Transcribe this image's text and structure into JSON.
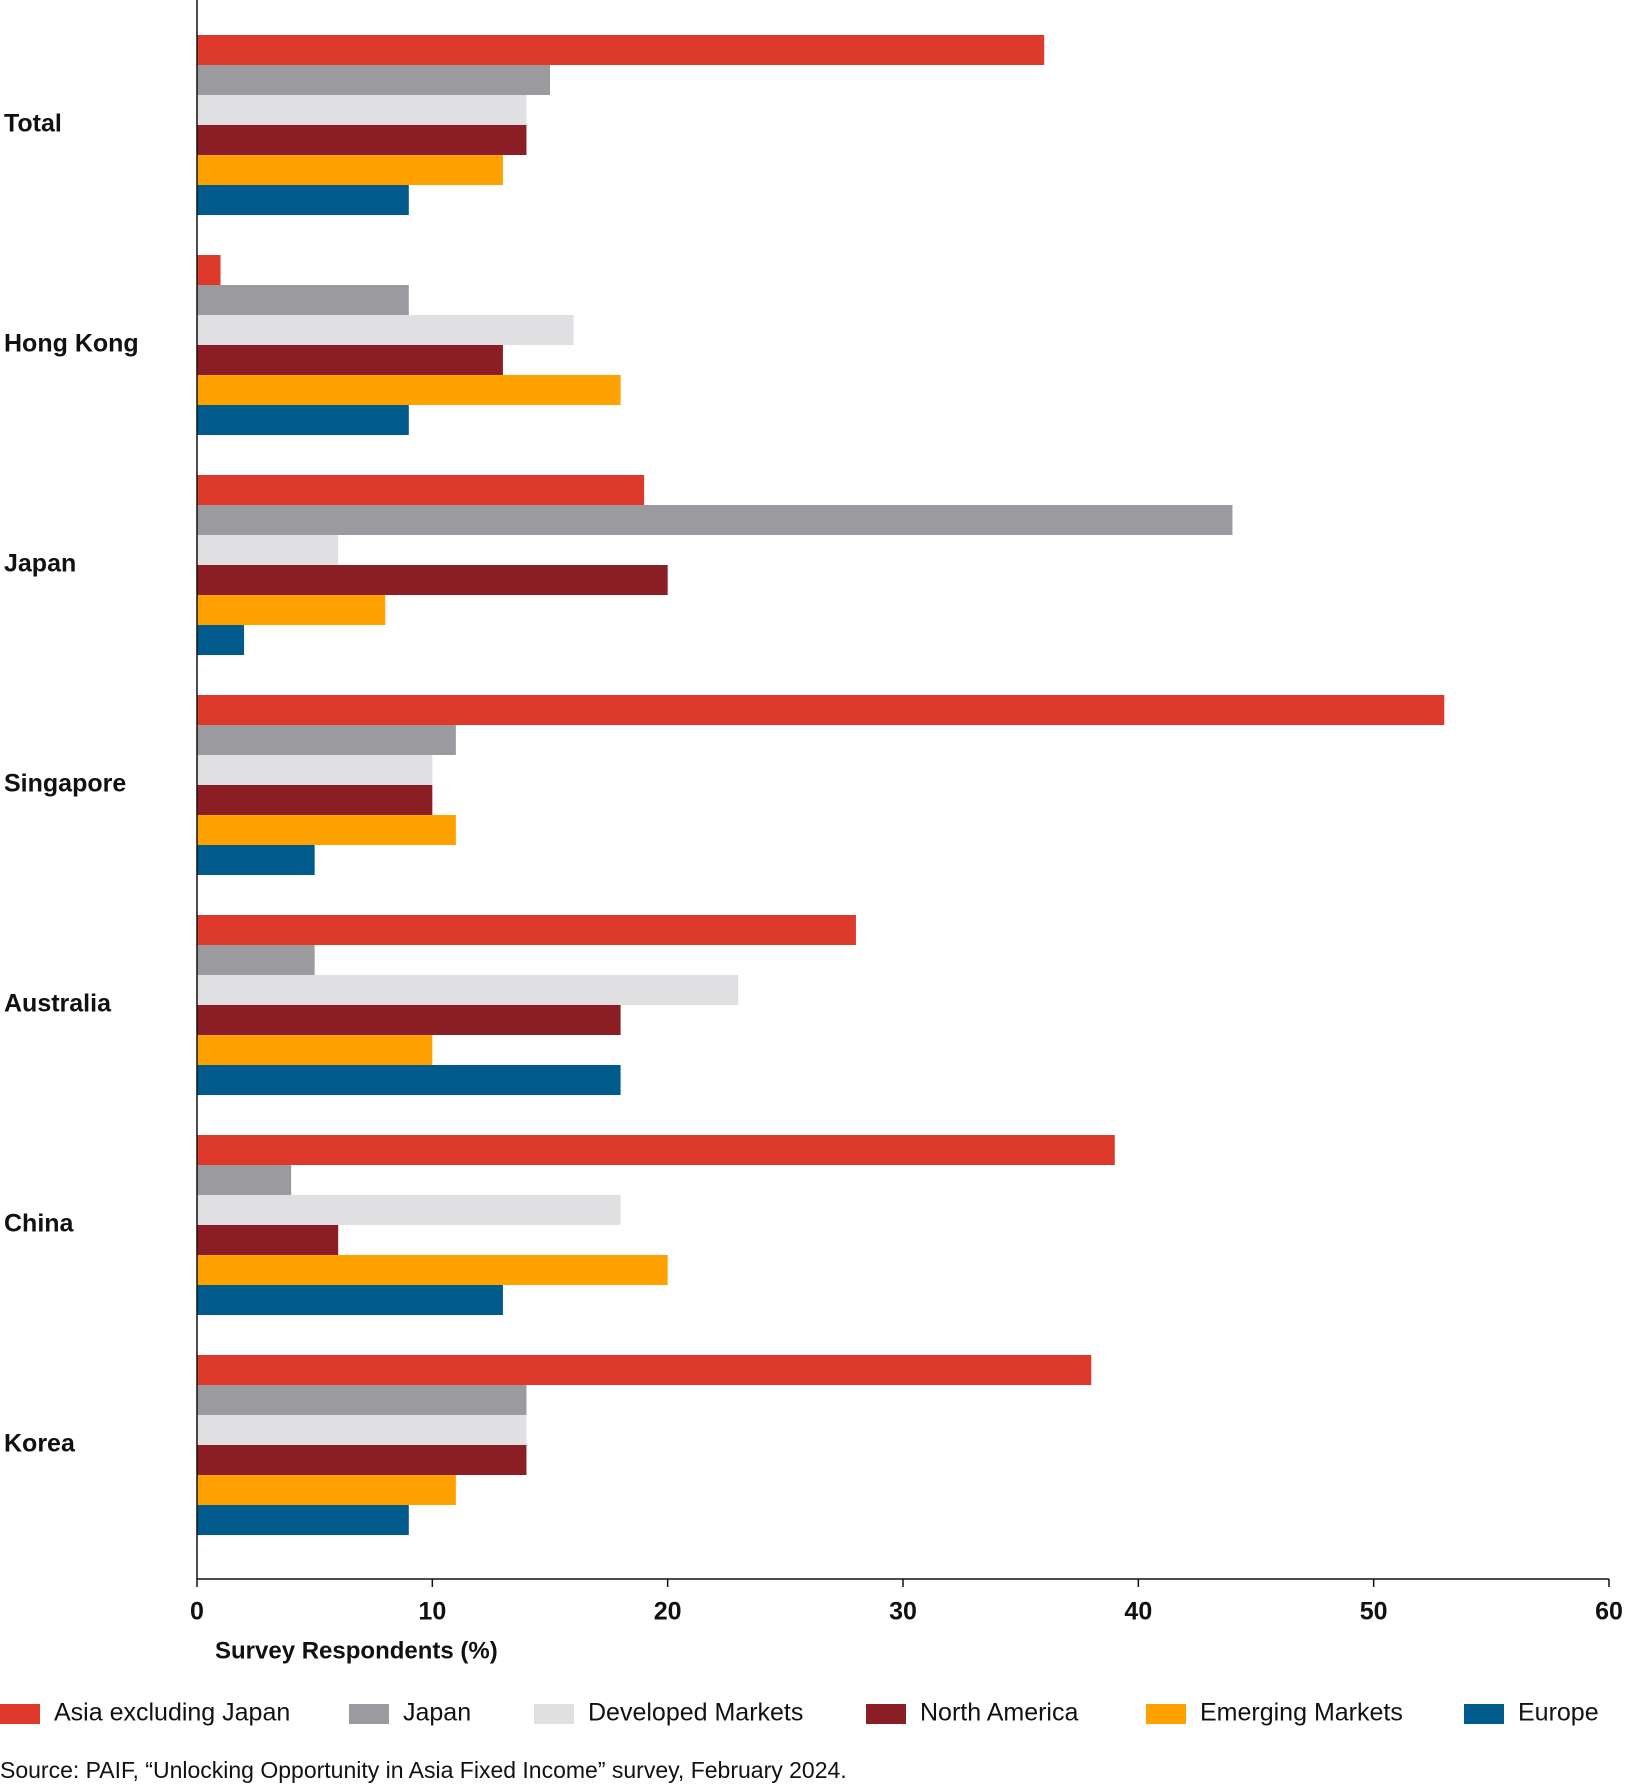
{
  "chart_data": {
    "type": "bar",
    "orientation": "horizontal",
    "x_label": "Survey Respondents (%)",
    "source": "Source: PAIF, “Unlocking Opportunity in Asia Fixed Income” survey, February 2024.",
    "categories": [
      "Total",
      "Hong Kong",
      "Japan",
      "Singapore",
      "Australia",
      "China",
      "Korea"
    ],
    "series": [
      {
        "name": "Asia excluding Japan",
        "color": "#dd3a2b",
        "values": [
          36,
          1,
          19,
          53,
          28,
          39,
          38
        ]
      },
      {
        "name": "Japan",
        "color": "#9b9b9f",
        "values": [
          15,
          9,
          44,
          11,
          5,
          4,
          14
        ]
      },
      {
        "name": "Developed Markets",
        "color": "#e0e0e2",
        "values": [
          14,
          16,
          6,
          10,
          23,
          18,
          14
        ]
      },
      {
        "name": "North America",
        "color": "#8b1e24",
        "values": [
          14,
          13,
          20,
          10,
          18,
          6,
          14
        ]
      },
      {
        "name": "Emerging Markets",
        "color": "#ffa200",
        "values": [
          13,
          18,
          8,
          11,
          10,
          20,
          11
        ]
      },
      {
        "name": "Europe",
        "color": "#005a8c",
        "values": [
          9,
          9,
          2,
          5,
          18,
          13,
          9
        ]
      }
    ],
    "xlim": [
      0,
      60
    ],
    "xticks": [
      0,
      10,
      20,
      30,
      40,
      50,
      60
    ],
    "grid": false,
    "legend": "bottom"
  }
}
